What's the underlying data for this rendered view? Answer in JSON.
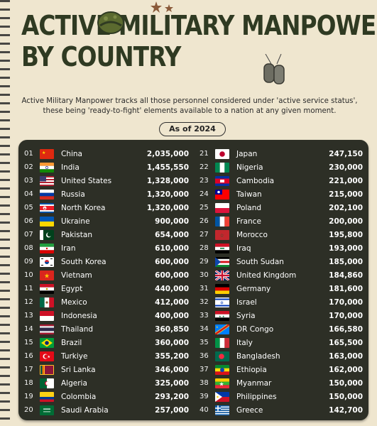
{
  "title_line1": "Active Military Manpower",
  "title_line2": "By Country",
  "description": "Active Military Manpower tracks all those personnel considered under 'active service status', these being 'ready-to-fight' elements available to a nation at any given moment.",
  "as_of": "As of 2024",
  "countries": [
    {
      "rank": "01",
      "name": "China",
      "value": "2,035,000",
      "flag": "china"
    },
    {
      "rank": "02",
      "name": "India",
      "value": "1,455,550",
      "flag": "india"
    },
    {
      "rank": "03",
      "name": "United States",
      "value": "1,328,000",
      "flag": "usa"
    },
    {
      "rank": "04",
      "name": "Russia",
      "value": "1,320,000",
      "flag": "russia"
    },
    {
      "rank": "05",
      "name": "North Korea",
      "value": "1,320,000",
      "flag": "nkorea"
    },
    {
      "rank": "06",
      "name": "Ukraine",
      "value": "900,000",
      "flag": "ukraine"
    },
    {
      "rank": "07",
      "name": "Pakistan",
      "value": "654,000",
      "flag": "pakistan"
    },
    {
      "rank": "08",
      "name": "Iran",
      "value": "610,000",
      "flag": "iran"
    },
    {
      "rank": "09",
      "name": "South Korea",
      "value": "600,000",
      "flag": "skorea"
    },
    {
      "rank": "10",
      "name": "Vietnam",
      "value": "600,000",
      "flag": "vietnam"
    },
    {
      "rank": "11",
      "name": "Egypt",
      "value": "440,000",
      "flag": "egypt"
    },
    {
      "rank": "12",
      "name": "Mexico",
      "value": "412,000",
      "flag": "mexico"
    },
    {
      "rank": "13",
      "name": "Indonesia",
      "value": "400,000",
      "flag": "indonesia"
    },
    {
      "rank": "14",
      "name": "Thailand",
      "value": "360,850",
      "flag": "thailand"
    },
    {
      "rank": "15",
      "name": "Brazil",
      "value": "360,000",
      "flag": "brazil"
    },
    {
      "rank": "16",
      "name": "Turkiye",
      "value": "355,200",
      "flag": "turkiye"
    },
    {
      "rank": "17",
      "name": "Sri Lanka",
      "value": "346,000",
      "flag": "srilanka"
    },
    {
      "rank": "18",
      "name": "Algeria",
      "value": "325,000",
      "flag": "algeria"
    },
    {
      "rank": "19",
      "name": "Colombia",
      "value": "293,200",
      "flag": "colombia"
    },
    {
      "rank": "20",
      "name": "Saudi Arabia",
      "value": "257,000",
      "flag": "saudi"
    },
    {
      "rank": "21",
      "name": "Japan",
      "value": "247,150",
      "flag": "japan"
    },
    {
      "rank": "22",
      "name": "Nigeria",
      "value": "230,000",
      "flag": "nigeria"
    },
    {
      "rank": "23",
      "name": "Cambodia",
      "value": "221,000",
      "flag": "cambodia"
    },
    {
      "rank": "24",
      "name": "Taiwan",
      "value": "215,000",
      "flag": "taiwan"
    },
    {
      "rank": "25",
      "name": "Poland",
      "value": "202,100",
      "flag": "poland"
    },
    {
      "rank": "26",
      "name": "France",
      "value": "200,000",
      "flag": "france"
    },
    {
      "rank": "27",
      "name": "Morocco",
      "value": "195,800",
      "flag": "morocco"
    },
    {
      "rank": "28",
      "name": "Iraq",
      "value": "193,000",
      "flag": "iraq"
    },
    {
      "rank": "29",
      "name": "South Sudan",
      "value": "185,000",
      "flag": "ssudan"
    },
    {
      "rank": "30",
      "name": "United Kingdom",
      "value": "184,860",
      "flag": "uk"
    },
    {
      "rank": "31",
      "name": "Germany",
      "value": "181,600",
      "flag": "germany"
    },
    {
      "rank": "32",
      "name": "Israel",
      "value": "170,000",
      "flag": "israel"
    },
    {
      "rank": "33",
      "name": "Syria",
      "value": "170,000",
      "flag": "syria"
    },
    {
      "rank": "34",
      "name": "DR Congo",
      "value": "166,580",
      "flag": "drcongo"
    },
    {
      "rank": "35",
      "name": "Italy",
      "value": "165,500",
      "flag": "italy"
    },
    {
      "rank": "36",
      "name": "Bangladesh",
      "value": "163,000",
      "flag": "bangladesh"
    },
    {
      "rank": "37",
      "name": "Ethiopia",
      "value": "162,000",
      "flag": "ethiopia"
    },
    {
      "rank": "38",
      "name": "Myanmar",
      "value": "150,000",
      "flag": "myanmar"
    },
    {
      "rank": "39",
      "name": "Philippines",
      "value": "150,000",
      "flag": "philippines"
    },
    {
      "rank": "40",
      "name": "Greece",
      "value": "142,700",
      "flag": "greece"
    }
  ],
  "colors": {
    "background": "#efe6cf",
    "title": "#2f3a22",
    "panel": "#2d2f26",
    "text": "#ffffff"
  }
}
